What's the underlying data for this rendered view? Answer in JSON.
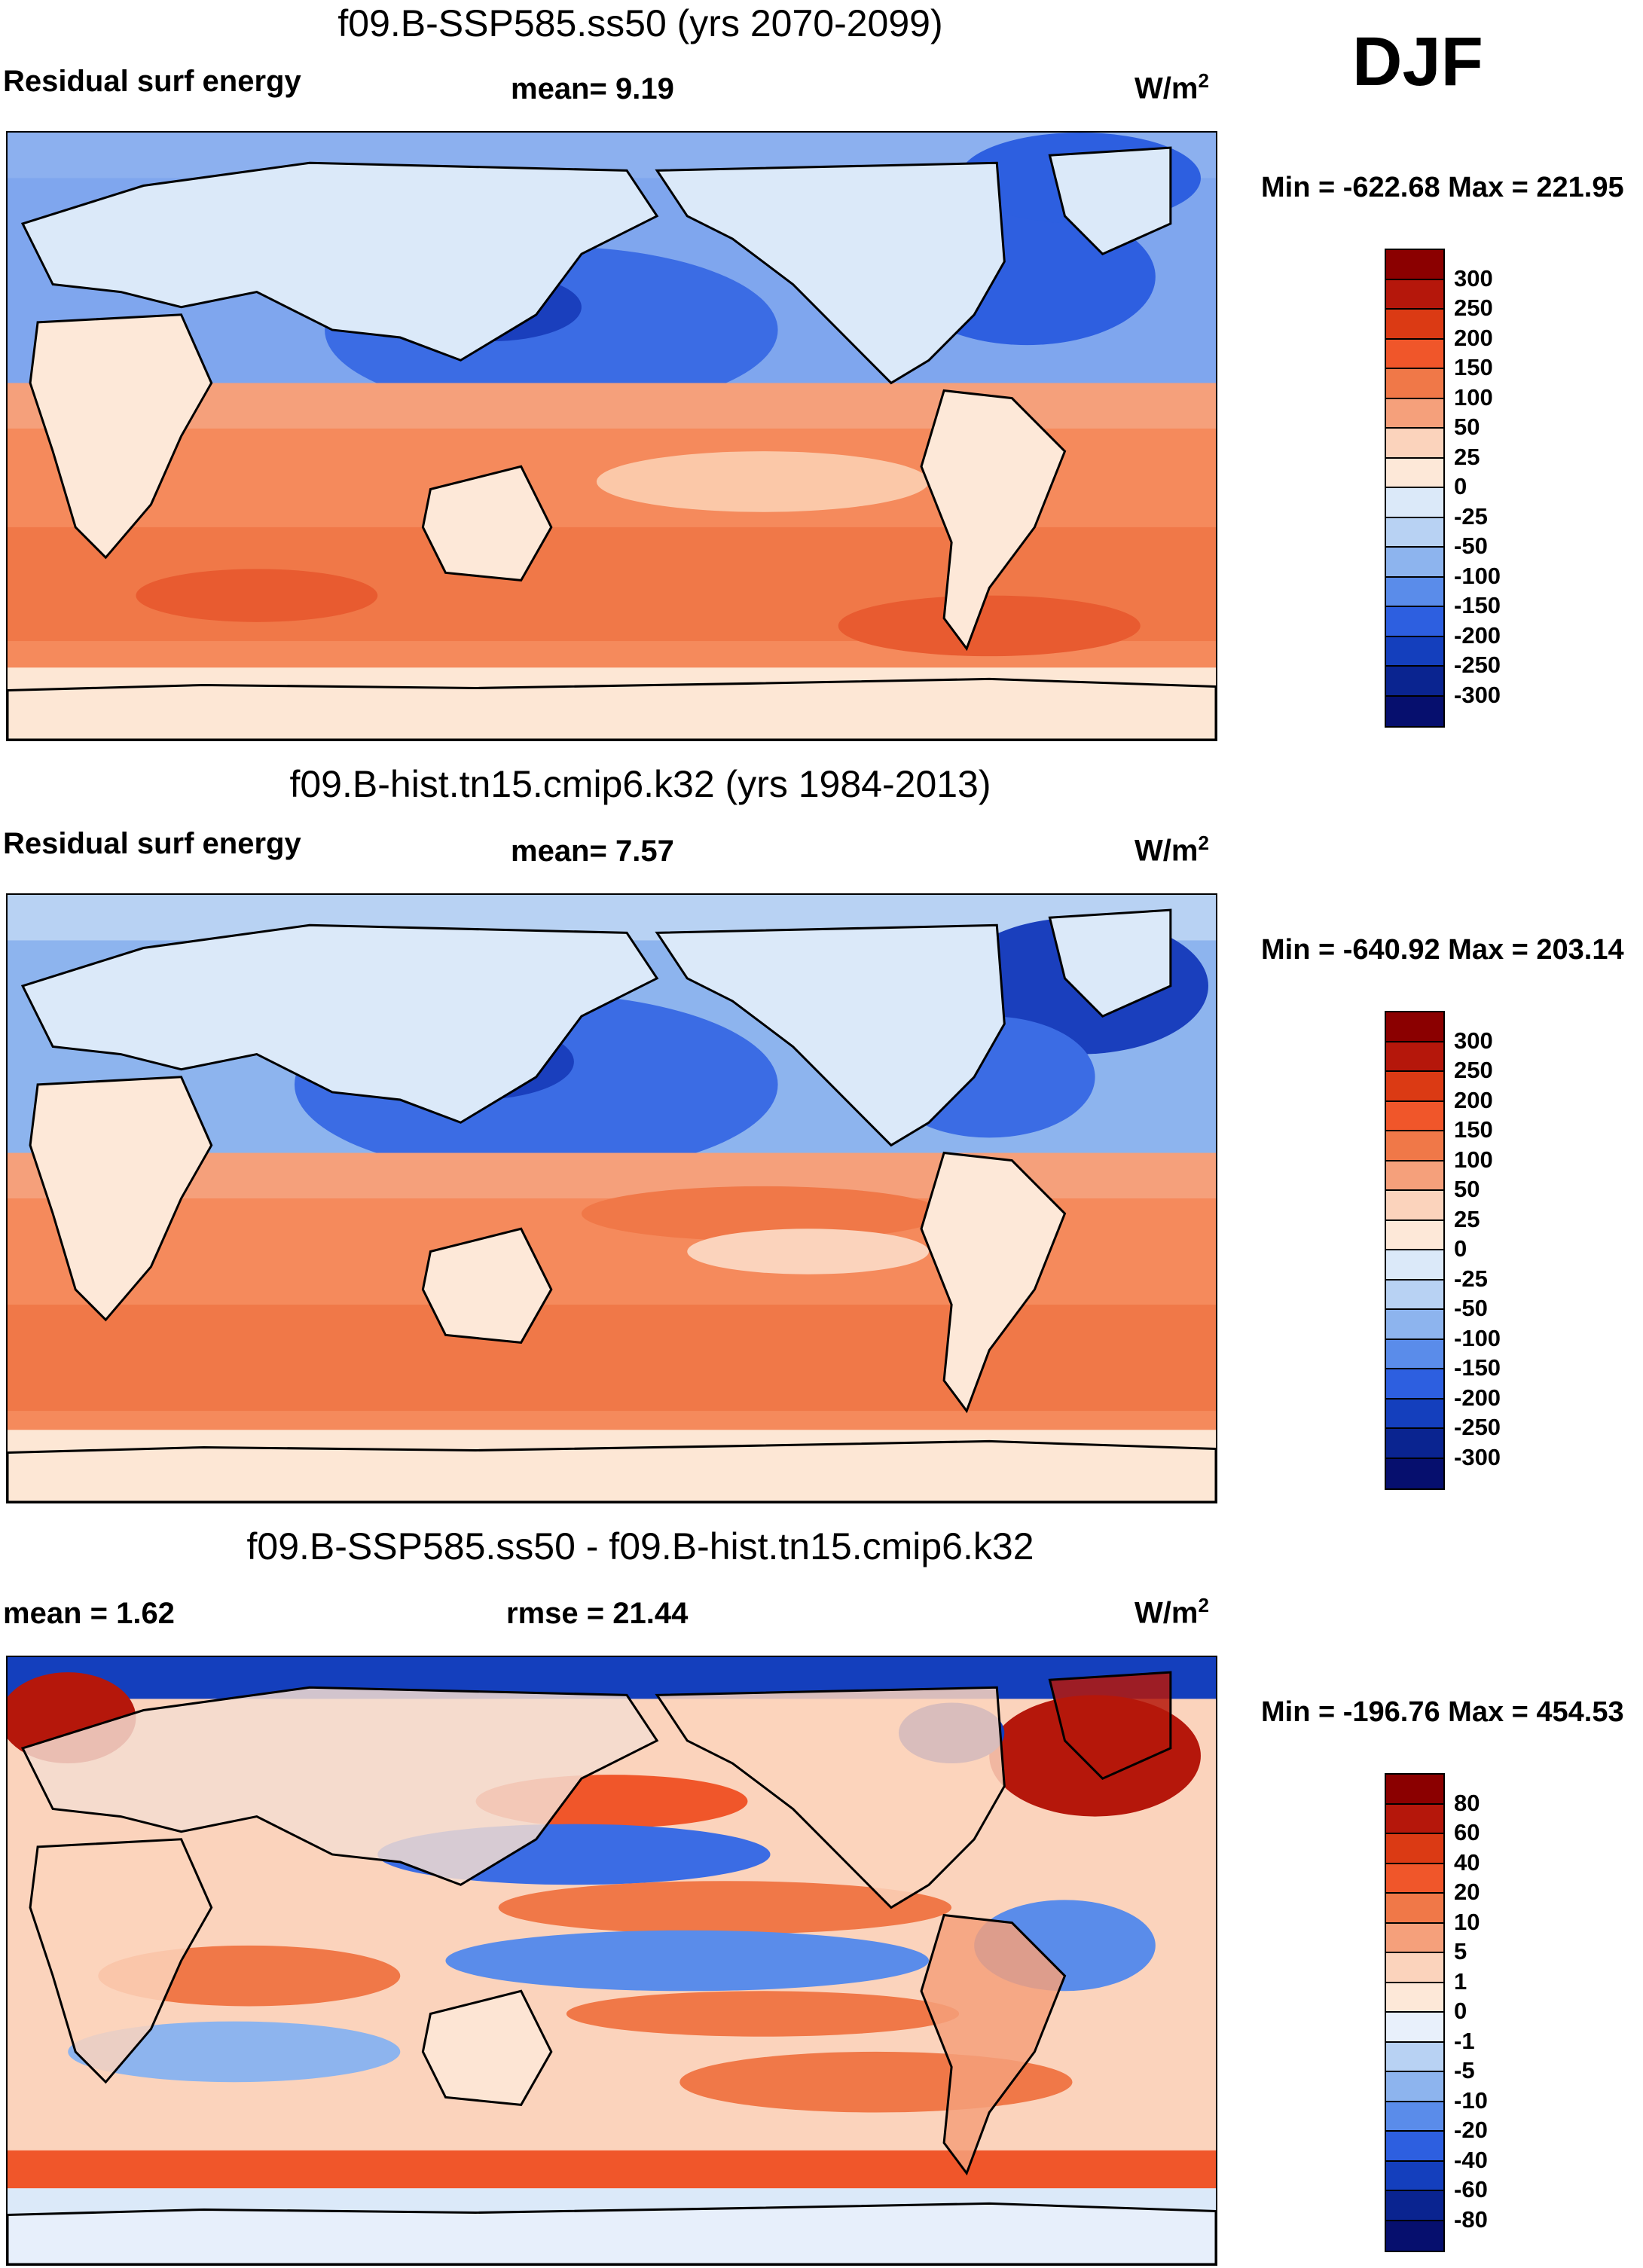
{
  "season": "DJF",
  "panels": [
    {
      "id": "future",
      "title": "f09.B-SSP585.ss50 (yrs 2070-2099)",
      "left_label": "Residual surf energy",
      "stat1": "mean=   9.19",
      "stat2": "",
      "units": "W/m",
      "units_sup": "2",
      "minmax": "Min = -622.68 Max = 221.95",
      "colorbar_labels": [
        "300",
        "250",
        "200",
        "150",
        "100",
        "50",
        "25",
        "0",
        "-25",
        "-50",
        "-100",
        "-150",
        "-200",
        "-250",
        "-300"
      ],
      "colorbar_colors": [
        "#8b0000",
        "#b5170b",
        "#db3a14",
        "#f0562a",
        "#f07848",
        "#f5a07b",
        "#fbd3bc",
        "#fde8d8",
        "#dbe9f9",
        "#b8d2f3",
        "#8db4ee",
        "#5a8cea",
        "#2d5fe0",
        "#143fbd",
        "#0a2490",
        "#060f6e"
      ]
    },
    {
      "id": "historical",
      "title": "f09.B-hist.tn15.cmip6.k32 (yrs 1984-2013)",
      "left_label": "Residual surf energy",
      "stat1": "mean=   7.57",
      "stat2": "",
      "units": "W/m",
      "units_sup": "2",
      "minmax": "Min = -640.92 Max = 203.14",
      "colorbar_labels": [
        "300",
        "250",
        "200",
        "150",
        "100",
        "50",
        "25",
        "0",
        "-25",
        "-50",
        "-100",
        "-150",
        "-200",
        "-250",
        "-300"
      ],
      "colorbar_colors": [
        "#8b0000",
        "#b5170b",
        "#db3a14",
        "#f0562a",
        "#f07848",
        "#f5a07b",
        "#fbd3bc",
        "#fde8d8",
        "#dbe9f9",
        "#b8d2f3",
        "#8db4ee",
        "#5a8cea",
        "#2d5fe0",
        "#143fbd",
        "#0a2490",
        "#060f6e"
      ]
    },
    {
      "id": "difference",
      "title": "f09.B-SSP585.ss50 - f09.B-hist.tn15.cmip6.k32",
      "left_label": "mean =   1.62",
      "stat1": "rmse =  21.44",
      "stat2": "",
      "units": "W/m",
      "units_sup": "2",
      "minmax": "Min = -196.76 Max = 454.53",
      "colorbar_labels": [
        "80",
        "60",
        "40",
        "20",
        "10",
        "5",
        "1",
        "0",
        "-1",
        "-5",
        "-10",
        "-20",
        "-40",
        "-60",
        "-80"
      ],
      "colorbar_colors": [
        "#8b0000",
        "#b5170b",
        "#db3a14",
        "#f0562a",
        "#f07848",
        "#f5a07b",
        "#fbd3bc",
        "#fde8d8",
        "#e8f0fb",
        "#b8d2f3",
        "#8db4ee",
        "#5a8cea",
        "#2d5fe0",
        "#143fbd",
        "#0a2490",
        "#060f6e"
      ]
    }
  ]
}
